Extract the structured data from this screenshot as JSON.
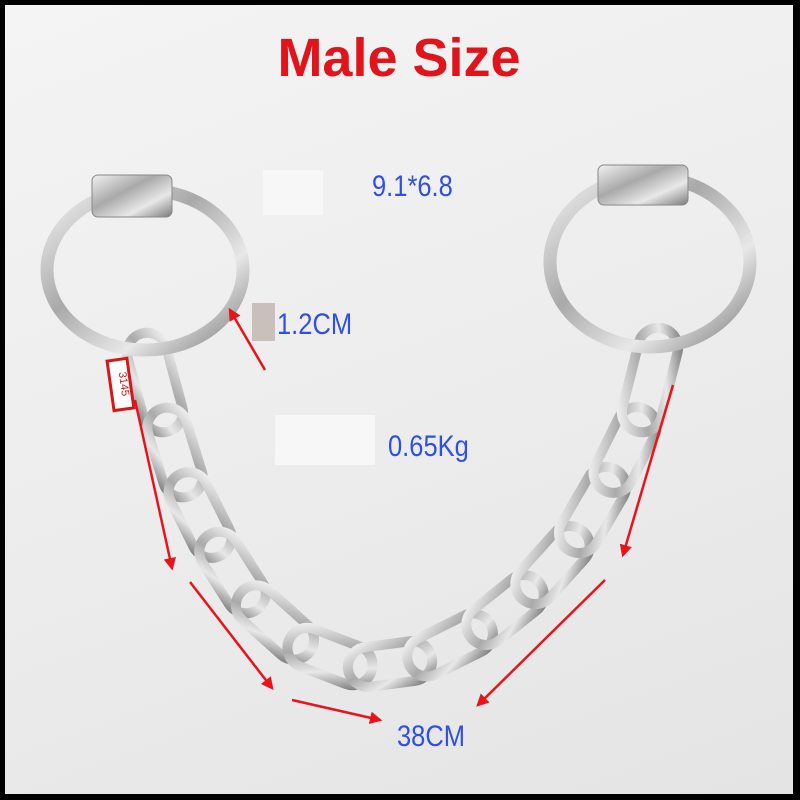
{
  "title": "Male Size",
  "labels": {
    "ring_size": "9.1*6.8",
    "ring_thickness": "1.2CM",
    "weight": "0.65Kg",
    "chain_length": "38CM"
  },
  "tag_number": "3145",
  "colors": {
    "title": "#e0141a",
    "label": "#2f4fe6",
    "arrow": "#e8141a",
    "frame": "#000000"
  }
}
